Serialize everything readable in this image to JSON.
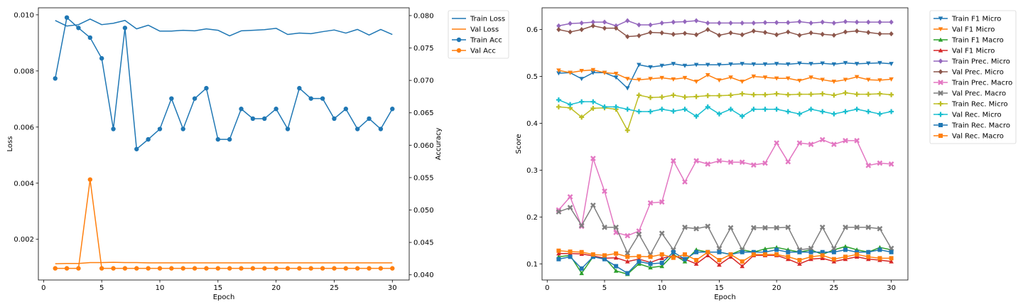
{
  "chart_data": [
    {
      "type": "line",
      "xlabel": "Epoch",
      "ylabel": "Loss",
      "y2label": "Accuracy",
      "xlim": [
        -0.45,
        31.45
      ],
      "ylim": [
        0.00055,
        0.01025
      ],
      "y2lim": [
        0.0392,
        0.0812
      ],
      "xticks": [
        0,
        5,
        10,
        15,
        20,
        25,
        30
      ],
      "yticks": [
        0.002,
        0.004,
        0.006,
        0.008,
        0.01
      ],
      "y2ticks": [
        0.04,
        0.045,
        0.05,
        0.055,
        0.06,
        0.065,
        0.07,
        0.075,
        0.08
      ],
      "tick_format": 3,
      "legend_position": "outside top-right",
      "x": [
        1,
        2,
        3,
        4,
        5,
        6,
        7,
        8,
        9,
        10,
        11,
        12,
        13,
        14,
        15,
        16,
        17,
        18,
        19,
        20,
        21,
        22,
        23,
        24,
        25,
        26,
        27,
        28,
        29,
        30
      ],
      "series": [
        {
          "name": "Train Loss",
          "axis": "left",
          "color": "#1f77b4",
          "marker": "none",
          "values": [
            0.0098,
            0.0096,
            0.00965,
            0.00985,
            0.00965,
            0.0097,
            0.0098,
            0.0095,
            0.00963,
            0.00942,
            0.00942,
            0.00945,
            0.00943,
            0.0095,
            0.00945,
            0.00925,
            0.00943,
            0.00945,
            0.00947,
            0.00952,
            0.0093,
            0.00935,
            0.00933,
            0.0094,
            0.00946,
            0.00935,
            0.00948,
            0.00928,
            0.00948,
            0.0093
          ]
        },
        {
          "name": "Val Loss",
          "axis": "left",
          "color": "#ff7f0e",
          "marker": "none",
          "values": [
            0.00113,
            0.00114,
            0.00114,
            0.00117,
            0.00117,
            0.00118,
            0.00117,
            0.00117,
            0.00116,
            0.00116,
            0.00116,
            0.00116,
            0.00116,
            0.00116,
            0.00116,
            0.00116,
            0.00116,
            0.00116,
            0.00116,
            0.00116,
            0.00116,
            0.00116,
            0.00116,
            0.00116,
            0.00116,
            0.00116,
            0.00116,
            0.00116,
            0.00116,
            0.00116
          ]
        },
        {
          "name": "Train Acc",
          "axis": "right",
          "color": "#1f77b4",
          "marker": "circle",
          "values": [
            0.0703,
            0.0797,
            0.0781,
            0.0766,
            0.0734,
            0.0625,
            0.0781,
            0.0594,
            0.0609,
            0.0625,
            0.0672,
            0.0625,
            0.0672,
            0.0688,
            0.0609,
            0.0609,
            0.0656,
            0.0641,
            0.0641,
            0.0656,
            0.0625,
            0.0688,
            0.0672,
            0.0672,
            0.0641,
            0.0656,
            0.0625,
            0.0641,
            0.0625,
            0.0656
          ]
        },
        {
          "name": "Val Acc",
          "axis": "right",
          "color": "#ff7f0e",
          "marker": "circle",
          "values": [
            0.041,
            0.041,
            0.041,
            0.0547,
            0.041,
            0.041,
            0.041,
            0.041,
            0.041,
            0.041,
            0.041,
            0.041,
            0.041,
            0.041,
            0.041,
            0.041,
            0.041,
            0.041,
            0.041,
            0.041,
            0.041,
            0.041,
            0.041,
            0.041,
            0.041,
            0.041,
            0.041,
            0.041,
            0.041,
            0.041
          ]
        }
      ]
    },
    {
      "type": "line",
      "xlabel": "Epoch",
      "ylabel": "Score",
      "xlim": [
        -0.45,
        31.45
      ],
      "ylim": [
        0.0655,
        0.6465
      ],
      "xticks": [
        0,
        5,
        10,
        15,
        20,
        25,
        30
      ],
      "yticks": [
        0.1,
        0.2,
        0.3,
        0.4,
        0.5,
        0.6
      ],
      "tick_format": 1,
      "legend_position": "outside top-right",
      "x": [
        1,
        2,
        3,
        4,
        5,
        6,
        7,
        8,
        9,
        10,
        11,
        12,
        13,
        14,
        15,
        16,
        17,
        18,
        19,
        20,
        21,
        22,
        23,
        24,
        25,
        26,
        27,
        28,
        29,
        30
      ],
      "series": [
        {
          "name": "Train F1 Micro",
          "color": "#1f77b4",
          "marker": "tri-down",
          "values": [
            0.507,
            0.508,
            0.495,
            0.508,
            0.508,
            0.498,
            0.475,
            0.525,
            0.52,
            0.523,
            0.527,
            0.523,
            0.525,
            0.525,
            0.525,
            0.526,
            0.527,
            0.526,
            0.526,
            0.527,
            0.526,
            0.528,
            0.527,
            0.528,
            0.526,
            0.529,
            0.527,
            0.528,
            0.529,
            0.527
          ]
        },
        {
          "name": "Val F1 Micro",
          "color": "#ff7f0e",
          "marker": "tri-down",
          "values": [
            0.513,
            0.508,
            0.512,
            0.514,
            0.508,
            0.506,
            0.495,
            0.493,
            0.495,
            0.497,
            0.494,
            0.497,
            0.489,
            0.503,
            0.492,
            0.498,
            0.489,
            0.5,
            0.498,
            0.496,
            0.496,
            0.491,
            0.498,
            0.493,
            0.489,
            0.493,
            0.499,
            0.493,
            0.492,
            0.494
          ]
        },
        {
          "name": "Train F1 Macro",
          "color": "#2ca02c",
          "marker": "tri-up",
          "values": [
            0.115,
            0.118,
            0.08,
            0.115,
            0.113,
            0.085,
            0.078,
            0.1,
            0.092,
            0.095,
            0.12,
            0.105,
            0.13,
            0.125,
            0.125,
            0.12,
            0.13,
            0.125,
            0.132,
            0.135,
            0.13,
            0.125,
            0.13,
            0.12,
            0.13,
            0.137,
            0.13,
            0.125,
            0.135,
            0.13
          ]
        },
        {
          "name": "Val F1 Micro",
          "color": "#d62728",
          "marker": "tri-up",
          "values": [
            0.122,
            0.122,
            0.121,
            0.117,
            0.112,
            0.113,
            0.105,
            0.11,
            0.103,
            0.112,
            0.117,
            0.11,
            0.1,
            0.118,
            0.098,
            0.115,
            0.095,
            0.118,
            0.118,
            0.118,
            0.11,
            0.1,
            0.11,
            0.112,
            0.105,
            0.11,
            0.115,
            0.11,
            0.108,
            0.105
          ]
        },
        {
          "name": "Train Prec. Micro",
          "color": "#9467bd",
          "marker": "diamond",
          "values": [
            0.608,
            0.613,
            0.614,
            0.616,
            0.616,
            0.608,
            0.619,
            0.61,
            0.61,
            0.614,
            0.616,
            0.617,
            0.619,
            0.614,
            0.614,
            0.614,
            0.614,
            0.614,
            0.615,
            0.615,
            0.615,
            0.617,
            0.614,
            0.616,
            0.614,
            0.617,
            0.616,
            0.616,
            0.616,
            0.616
          ]
        },
        {
          "name": "Val Prec. Micro",
          "color": "#8c564b",
          "marker": "diamond",
          "values": [
            0.6,
            0.595,
            0.6,
            0.608,
            0.603,
            0.603,
            0.585,
            0.587,
            0.594,
            0.593,
            0.59,
            0.592,
            0.589,
            0.6,
            0.588,
            0.593,
            0.589,
            0.597,
            0.594,
            0.589,
            0.595,
            0.588,
            0.593,
            0.59,
            0.588,
            0.595,
            0.597,
            0.594,
            0.591,
            0.591
          ]
        },
        {
          "name": "Train Prec. Macro",
          "color": "#e377c2",
          "marker": "x",
          "values": [
            0.215,
            0.243,
            0.18,
            0.325,
            0.255,
            0.167,
            0.16,
            0.17,
            0.23,
            0.232,
            0.32,
            0.275,
            0.32,
            0.313,
            0.32,
            0.317,
            0.317,
            0.311,
            0.315,
            0.358,
            0.318,
            0.358,
            0.355,
            0.365,
            0.355,
            0.363,
            0.363,
            0.31,
            0.315,
            0.313
          ]
        },
        {
          "name": "Val Prec. Macro",
          "color": "#7f7f7f",
          "marker": "x",
          "values": [
            0.211,
            0.22,
            0.182,
            0.225,
            0.178,
            0.178,
            0.123,
            0.163,
            0.12,
            0.165,
            0.13,
            0.178,
            0.175,
            0.18,
            0.133,
            0.177,
            0.13,
            0.177,
            0.177,
            0.177,
            0.178,
            0.13,
            0.133,
            0.178,
            0.133,
            0.178,
            0.178,
            0.178,
            0.175,
            0.133
          ]
        },
        {
          "name": "Train Rec. Micro",
          "color": "#bcbd22",
          "marker": "plus",
          "values": [
            0.435,
            0.433,
            0.413,
            0.432,
            0.433,
            0.43,
            0.385,
            0.46,
            0.455,
            0.456,
            0.46,
            0.456,
            0.457,
            0.459,
            0.459,
            0.46,
            0.463,
            0.461,
            0.461,
            0.463,
            0.461,
            0.462,
            0.462,
            0.463,
            0.46,
            0.465,
            0.462,
            0.462,
            0.463,
            0.461
          ]
        },
        {
          "name": "Val Rec. Micro",
          "color": "#17becf",
          "marker": "plus",
          "values": [
            0.45,
            0.44,
            0.446,
            0.446,
            0.435,
            0.435,
            0.43,
            0.425,
            0.425,
            0.43,
            0.426,
            0.43,
            0.415,
            0.435,
            0.42,
            0.43,
            0.415,
            0.43,
            0.43,
            0.43,
            0.425,
            0.42,
            0.43,
            0.425,
            0.42,
            0.425,
            0.43,
            0.425,
            0.42,
            0.425
          ]
        },
        {
          "name": "Train Rec. Macro",
          "color": "#1f77b4",
          "marker": "square",
          "values": [
            0.11,
            0.115,
            0.09,
            0.115,
            0.11,
            0.095,
            0.08,
            0.105,
            0.1,
            0.102,
            0.125,
            0.11,
            0.125,
            0.125,
            0.125,
            0.12,
            0.125,
            0.125,
            0.125,
            0.13,
            0.125,
            0.125,
            0.125,
            0.125,
            0.125,
            0.13,
            0.125,
            0.125,
            0.13,
            0.125
          ]
        },
        {
          "name": "Val Rec. Macro",
          "color": "#ff7f0e",
          "marker": "square",
          "values": [
            0.128,
            0.126,
            0.125,
            0.12,
            0.118,
            0.122,
            0.115,
            0.116,
            0.115,
            0.12,
            0.113,
            0.12,
            0.108,
            0.125,
            0.108,
            0.12,
            0.105,
            0.12,
            0.12,
            0.12,
            0.115,
            0.108,
            0.115,
            0.118,
            0.11,
            0.115,
            0.12,
            0.115,
            0.112,
            0.112
          ]
        }
      ]
    }
  ]
}
